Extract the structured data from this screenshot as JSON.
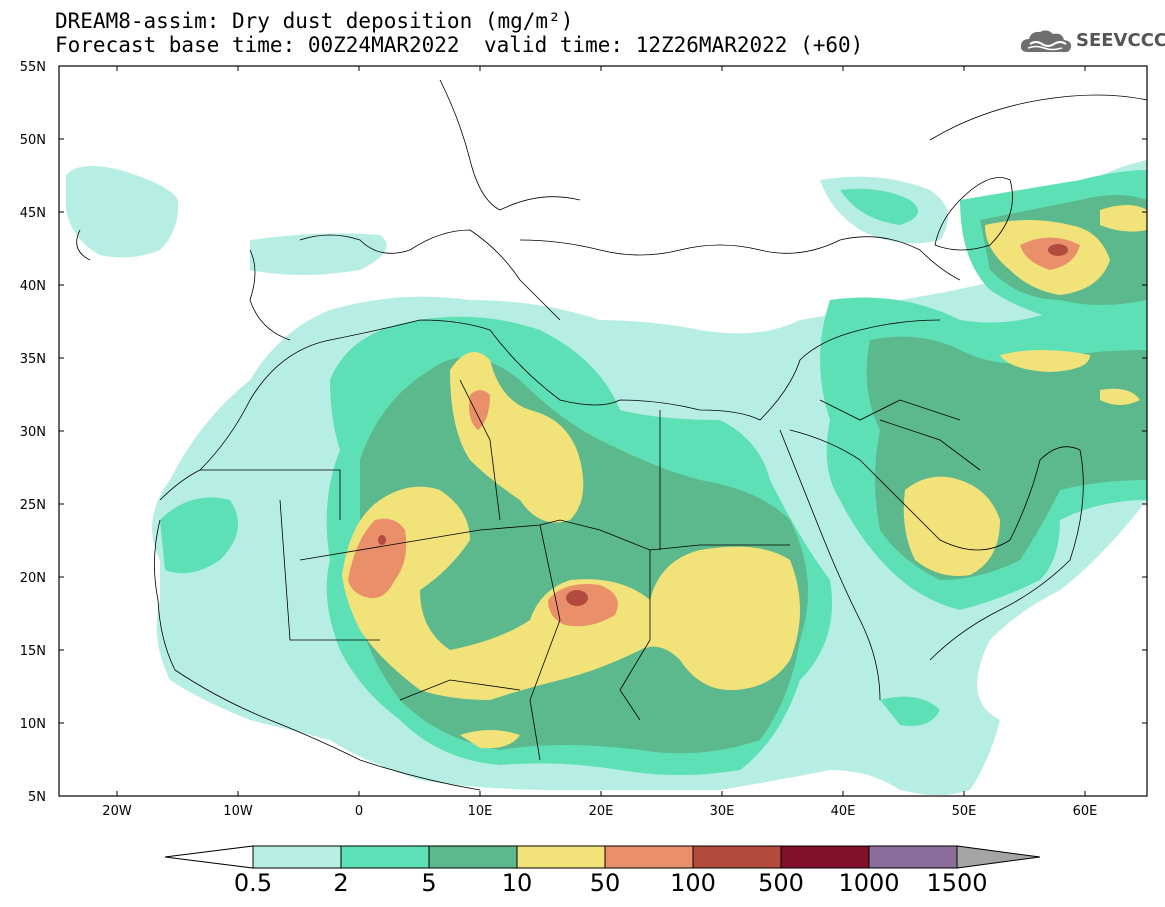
{
  "title": {
    "line1": "DREAM8-assim: Dry dust deposition (mg/m²)",
    "base_time": "Forecast base time: 00Z24MAR2022",
    "valid_time": "valid time: 12Z26MAR2022 (+60)"
  },
  "logo": {
    "text": "SEEVCCC",
    "icon": "cloud-logo-icon"
  },
  "axes": {
    "lat_labels": [
      "55N",
      "50N",
      "45N",
      "40N",
      "35N",
      "30N",
      "25N",
      "20N",
      "15N",
      "10N",
      "5N"
    ],
    "lon_labels": [
      "20W",
      "10W",
      "0",
      "10E",
      "20E",
      "30E",
      "40E",
      "50E",
      "60E"
    ]
  },
  "colorbar": {
    "levels": [
      "0.5",
      "2",
      "5",
      "10",
      "50",
      "100",
      "500",
      "1000",
      "1500"
    ],
    "colors": [
      "#ffffff",
      "#b7eee3",
      "#5ee0b7",
      "#5cb88d",
      "#f2e27a",
      "#e9906a",
      "#b24a3d",
      "#82102a",
      "#8b6d9c",
      "#a5a5a5"
    ]
  }
}
